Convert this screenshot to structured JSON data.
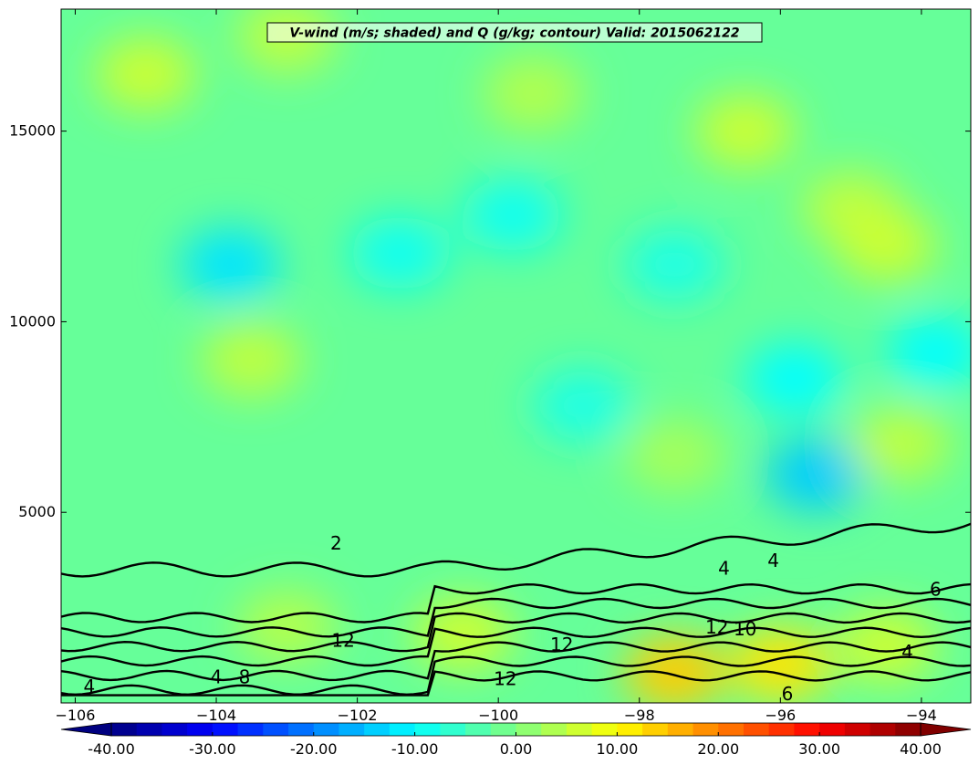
{
  "chart_data": {
    "type": "heatmap",
    "title": "V-wind (m/s; shaded) and Q (g/kg; contour) Valid: 2015062122",
    "xlim": [
      -106.2,
      -93.3
    ],
    "ylim": [
      0,
      18200
    ],
    "x_ticks": [
      -106,
      -104,
      -102,
      -100,
      -98,
      -96,
      -94
    ],
    "x_tick_labels": [
      "−106",
      "−104",
      "−102",
      "−100",
      "−98",
      "−96",
      "−94"
    ],
    "y_ticks": [
      5000,
      10000,
      15000
    ],
    "y_tick_labels": [
      "5000",
      "10000",
      "15000"
    ],
    "colorbar": {
      "min": -40,
      "max": 40,
      "step": 2.5,
      "ticks": [
        -40,
        -30,
        -20,
        -10,
        0,
        10,
        20,
        30,
        40
      ],
      "tick_labels": [
        "-40.00",
        "-30.00",
        "-20.00",
        "-10.00",
        "0.00",
        "10.00",
        "20.00",
        "30.00",
        "40.00"
      ],
      "colormap": "jet",
      "extend": "both"
    },
    "shaded_field": {
      "name": "V-wind (m/s)",
      "background_value": -2,
      "features": [
        {
          "x": -105.0,
          "y": 16500,
          "value": 6
        },
        {
          "x": -103.0,
          "y": 17500,
          "value": 5
        },
        {
          "x": -99.5,
          "y": 16000,
          "value": 4
        },
        {
          "x": -96.5,
          "y": 15000,
          "value": 6
        },
        {
          "x": -95.0,
          "y": 13000,
          "value": 5
        },
        {
          "x": -94.5,
          "y": 12000,
          "value": 6
        },
        {
          "x": -103.8,
          "y": 11500,
          "value": -12
        },
        {
          "x": -101.4,
          "y": 11800,
          "value": -9
        },
        {
          "x": -99.8,
          "y": 12800,
          "value": -9
        },
        {
          "x": -97.5,
          "y": 11500,
          "value": -8
        },
        {
          "x": -95.8,
          "y": 8500,
          "value": -10
        },
        {
          "x": -95.5,
          "y": 6000,
          "value": -14
        },
        {
          "x": -93.8,
          "y": 9200,
          "value": -10
        },
        {
          "x": -103.5,
          "y": 9000,
          "value": 5
        },
        {
          "x": -94.3,
          "y": 6800,
          "value": 5
        },
        {
          "x": -97.5,
          "y": 6500,
          "value": 3
        },
        {
          "x": -98.8,
          "y": 7800,
          "value": -8
        },
        {
          "x": -97.5,
          "y": 800,
          "value": 14
        },
        {
          "x": -96.0,
          "y": 1000,
          "value": 12
        },
        {
          "x": -100.5,
          "y": 1800,
          "value": 6
        },
        {
          "x": -94.5,
          "y": 1500,
          "value": 6
        },
        {
          "x": -103.0,
          "y": 2000,
          "value": 4
        }
      ]
    },
    "contour_levels": [
      2,
      4,
      6,
      8,
      10,
      12,
      14,
      16
    ],
    "contour_labels": [
      {
        "text": "2",
        "x": -102.3,
        "y": 4150
      },
      {
        "text": "4",
        "x": -96.8,
        "y": 3500
      },
      {
        "text": "4",
        "x": -96.1,
        "y": 3700
      },
      {
        "text": "6",
        "x": -93.8,
        "y": 2950
      },
      {
        "text": "12",
        "x": -96.9,
        "y": 1950
      },
      {
        "text": "10",
        "x": -96.5,
        "y": 1900
      },
      {
        "text": "12",
        "x": -102.2,
        "y": 1600
      },
      {
        "text": "12",
        "x": -99.1,
        "y": 1500
      },
      {
        "text": "12",
        "x": -99.9,
        "y": 600
      },
      {
        "text": "4",
        "x": -94.2,
        "y": 1300
      },
      {
        "text": "6",
        "x": -95.9,
        "y": 200
      },
      {
        "text": "4",
        "x": -105.8,
        "y": 400
      },
      {
        "text": "4",
        "x": -104.0,
        "y": 650
      },
      {
        "text": "8",
        "x": -103.6,
        "y": 650
      }
    ]
  }
}
